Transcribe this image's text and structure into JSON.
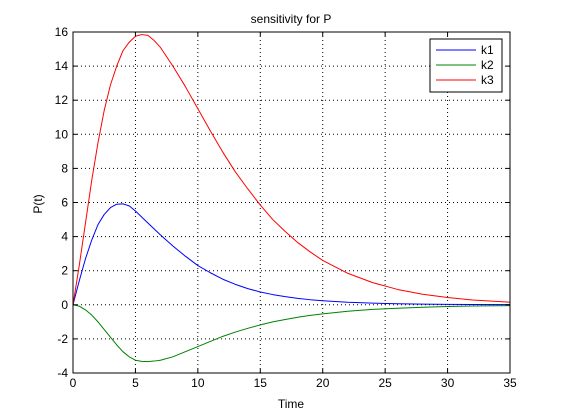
{
  "chart_data": {
    "type": "line",
    "title": "sensitivity for P",
    "xlabel": "Time",
    "ylabel": "P(t)",
    "xlim": [
      0,
      35
    ],
    "ylim": [
      -4,
      16
    ],
    "xticks": [
      0,
      5,
      10,
      15,
      20,
      25,
      30,
      35
    ],
    "yticks": [
      -4,
      -2,
      0,
      2,
      4,
      6,
      8,
      10,
      12,
      14,
      16
    ],
    "grid": true,
    "legend_position": "top-right",
    "series": [
      {
        "name": "k1",
        "color": "#0000ff",
        "x": [
          0,
          0.5,
          1,
          1.5,
          2,
          2.5,
          3,
          3.5,
          4,
          4.5,
          5,
          6,
          7,
          8,
          9,
          10,
          11,
          12,
          13,
          14,
          15,
          16,
          17,
          18,
          19,
          20,
          22,
          24,
          26,
          28,
          30,
          32,
          35
        ],
        "y": [
          0,
          1.4,
          2.7,
          3.8,
          4.7,
          5.3,
          5.7,
          5.9,
          5.92,
          5.8,
          5.5,
          4.8,
          4.1,
          3.45,
          2.85,
          2.3,
          1.88,
          1.5,
          1.2,
          0.95,
          0.75,
          0.6,
          0.48,
          0.38,
          0.3,
          0.24,
          0.15,
          0.1,
          0.06,
          0.04,
          0.025,
          0.015,
          0.01
        ]
      },
      {
        "name": "k2",
        "color": "#008000",
        "x": [
          0,
          0.5,
          1,
          1.5,
          2,
          2.5,
          3,
          3.5,
          4,
          4.5,
          5,
          5.5,
          6,
          6.5,
          7,
          8,
          9,
          10,
          11,
          12,
          13,
          14,
          15,
          16,
          17,
          18,
          19,
          20,
          22,
          24,
          26,
          28,
          30,
          32,
          35
        ],
        "y": [
          0,
          -0.08,
          -0.3,
          -0.6,
          -1.0,
          -1.45,
          -1.9,
          -2.35,
          -2.75,
          -3.05,
          -3.25,
          -3.32,
          -3.33,
          -3.3,
          -3.25,
          -3.05,
          -2.75,
          -2.45,
          -2.15,
          -1.85,
          -1.6,
          -1.38,
          -1.18,
          -1.0,
          -0.86,
          -0.73,
          -0.62,
          -0.53,
          -0.38,
          -0.27,
          -0.2,
          -0.14,
          -0.1,
          -0.07,
          -0.05
        ]
      },
      {
        "name": "k3",
        "color": "#ff0000",
        "x": [
          0,
          0.5,
          1,
          1.5,
          2,
          2.5,
          3,
          3.5,
          4,
          4.5,
          5,
          5.5,
          6,
          6.5,
          7,
          8,
          9,
          10,
          11,
          12,
          13,
          14,
          15,
          16,
          17,
          18,
          19,
          20,
          22,
          24,
          26,
          28,
          30,
          32,
          35
        ],
        "y": [
          0,
          2.3,
          4.8,
          7.3,
          9.5,
          11.4,
          12.9,
          14.0,
          14.9,
          15.4,
          15.75,
          15.85,
          15.8,
          15.5,
          15.1,
          14.0,
          12.8,
          11.5,
          10.2,
          8.95,
          7.8,
          6.8,
          5.85,
          5.0,
          4.3,
          3.65,
          3.1,
          2.6,
          1.85,
          1.3,
          0.9,
          0.62,
          0.43,
          0.28,
          0.15
        ]
      }
    ]
  }
}
